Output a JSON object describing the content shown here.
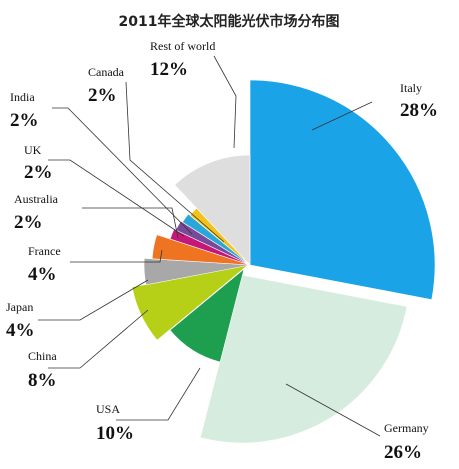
{
  "chart_data": {
    "type": "pie",
    "title": "2011年全球太阳能光伏市场分布图",
    "slices": [
      {
        "name": "Italy",
        "label": "28%",
        "value": 28,
        "color": "#1aa3e6"
      },
      {
        "name": "Germany",
        "label": "26%",
        "value": 26,
        "color": "#d6ecdf"
      },
      {
        "name": "USA",
        "label": "10%",
        "value": 10,
        "color": "#1e9e4f"
      },
      {
        "name": "China",
        "label": "8%",
        "value": 8,
        "color": "#b6cf17"
      },
      {
        "name": "Japan",
        "label": "4%",
        "value": 4,
        "color": "#a8a8a8"
      },
      {
        "name": "France",
        "label": "4%",
        "value": 4,
        "color": "#ee7422"
      },
      {
        "name": "Australia",
        "label": "2%",
        "value": 2,
        "color": "#c5177a"
      },
      {
        "name": "UK",
        "label": "2%",
        "value": 2,
        "color": "#7a4a9a"
      },
      {
        "name": "India",
        "label": "2%",
        "value": 2,
        "color": "#2aa6d9"
      },
      {
        "name": "Canada",
        "label": "2%",
        "value": 2,
        "color": "#f2c21a"
      },
      {
        "name": "Rest of world",
        "label": "12%",
        "value": 12,
        "color": "#dedede"
      }
    ]
  }
}
